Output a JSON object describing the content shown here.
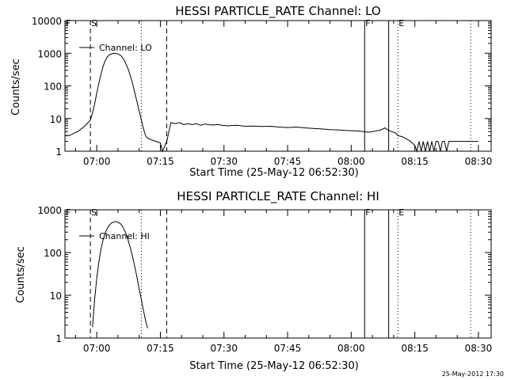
{
  "footer_stamp": "25-May-2012 17:30",
  "chart_data": [
    {
      "type": "line",
      "title": "HESSI PARTICLE_RATE Channel: LO",
      "xlabel": "Start Time (25-May-12 06:52:30)",
      "ylabel": "Counts/sec",
      "yscale": "log",
      "xlim": [
        "06:52:30",
        "08:33:00"
      ],
      "ylim": [
        1,
        10000
      ],
      "x_ticks": [
        "07:00",
        "07:15",
        "07:30",
        "07:45",
        "08:00",
        "08:15",
        "08:30"
      ],
      "y_ticks": [
        "1",
        "10",
        "100",
        "1000",
        "10000"
      ],
      "legend": {
        "entries": [
          "Channel: LO"
        ],
        "position": "top-left"
      },
      "markers": [
        {
          "label": "F",
          "time": "06:52:30",
          "style": "none"
        },
        {
          "label": "S",
          "time": "06:58:30",
          "style": "dashed"
        },
        {
          "label": "",
          "time": "07:10:30",
          "style": "dotted"
        },
        {
          "label": "",
          "time": "07:16:30",
          "style": "dashed"
        },
        {
          "label": "F",
          "time": "08:03:10",
          "style": "solid"
        },
        {
          "label": "",
          "time": "08:08:50",
          "style": "solid"
        },
        {
          "label": "E",
          "time": "08:11:00",
          "style": "dotted"
        },
        {
          "label": "",
          "time": "08:28:10",
          "style": "dotted"
        }
      ],
      "series": [
        {
          "name": "Channel: LO",
          "points": [
            [
              "06:52:30",
              3
            ],
            [
              "06:53:30",
              3
            ],
            [
              "06:54:30",
              3.5
            ],
            [
              "06:55:30",
              4
            ],
            [
              "06:56:30",
              5
            ],
            [
              "06:57:30",
              6.5
            ],
            [
              "06:58:30",
              9
            ],
            [
              "06:59:00",
              15
            ],
            [
              "06:59:30",
              28
            ],
            [
              "07:00:00",
              60
            ],
            [
              "07:00:30",
              120
            ],
            [
              "07:01:00",
              230
            ],
            [
              "07:01:30",
              400
            ],
            [
              "07:02:00",
              600
            ],
            [
              "07:02:30",
              780
            ],
            [
              "07:03:00",
              900
            ],
            [
              "07:03:30",
              960
            ],
            [
              "07:04:00",
              1000
            ],
            [
              "07:04:30",
              990
            ],
            [
              "07:05:00",
              950
            ],
            [
              "07:05:30",
              880
            ],
            [
              "07:06:00",
              760
            ],
            [
              "07:06:30",
              600
            ],
            [
              "07:07:00",
              440
            ],
            [
              "07:07:30",
              300
            ],
            [
              "07:08:00",
              190
            ],
            [
              "07:08:30",
              110
            ],
            [
              "07:09:00",
              60
            ],
            [
              "07:09:30",
              32
            ],
            [
              "07:10:00",
              17
            ],
            [
              "07:10:30",
              9
            ],
            [
              "07:11:00",
              5
            ],
            [
              "07:11:30",
              3
            ],
            [
              "07:12:00",
              2.5
            ],
            [
              "07:13:00",
              2.2
            ],
            [
              "07:14:00",
              2
            ],
            [
              "07:15:00",
              1.8
            ],
            [
              "07:15:30",
              1
            ],
            [
              "07:16:00",
              1.4
            ],
            [
              "07:16:30",
              2
            ],
            [
              "07:17:00",
              4
            ],
            [
              "07:17:30",
              7.5
            ],
            [
              "07:18:30",
              7
            ],
            [
              "07:19:30",
              7.5
            ],
            [
              "07:20:30",
              6.5
            ],
            [
              "07:21:30",
              7
            ],
            [
              "07:22:30",
              6.5
            ],
            [
              "07:23:30",
              7
            ],
            [
              "07:24:30",
              6.2
            ],
            [
              "07:25:30",
              6.8
            ],
            [
              "07:26:30",
              6.5
            ],
            [
              "07:27:30",
              6.3
            ],
            [
              "07:28:30",
              6.6
            ],
            [
              "07:29:30",
              6.2
            ],
            [
              "07:31:00",
              6
            ],
            [
              "07:33:00",
              6.2
            ],
            [
              "07:35:00",
              5.8
            ],
            [
              "07:37:00",
              5.9
            ],
            [
              "07:39:00",
              5.7
            ],
            [
              "07:41:00",
              5.8
            ],
            [
              "07:43:00",
              5.5
            ],
            [
              "07:45:00",
              5.3
            ],
            [
              "07:47:00",
              5.5
            ],
            [
              "07:49:00",
              5.2
            ],
            [
              "07:51:00",
              5
            ],
            [
              "07:53:00",
              4.8
            ],
            [
              "07:55:00",
              4.6
            ],
            [
              "07:57:00",
              4.5
            ],
            [
              "07:59:00",
              4.3
            ],
            [
              "08:01:00",
              4.2
            ],
            [
              "08:03:00",
              4
            ],
            [
              "08:04:00",
              3.8
            ],
            [
              "08:05:00",
              4
            ],
            [
              "08:06:00",
              4.2
            ],
            [
              "08:07:00",
              4.5
            ],
            [
              "08:08:00",
              5.2
            ],
            [
              "08:08:30",
              4.6
            ],
            [
              "08:09:30",
              4
            ],
            [
              "08:10:30",
              3.6
            ],
            [
              "08:11:00",
              3
            ],
            [
              "08:12:00",
              2.8
            ],
            [
              "08:13:00",
              2.4
            ],
            [
              "08:14:00",
              2
            ],
            [
              "08:15:00",
              1.5
            ],
            [
              "08:15:30",
              1
            ],
            [
              "08:16:00",
              2
            ],
            [
              "08:16:30",
              1
            ],
            [
              "08:17:00",
              2
            ],
            [
              "08:17:30",
              1
            ],
            [
              "08:18:00",
              2
            ],
            [
              "08:18:30",
              1
            ],
            [
              "08:19:00",
              2
            ],
            [
              "08:19:30",
              1
            ],
            [
              "08:20:00",
              2
            ],
            [
              "08:20:30",
              2
            ],
            [
              "08:21:00",
              1
            ],
            [
              "08:21:30",
              2
            ],
            [
              "08:22:00",
              2
            ],
            [
              "08:22:30",
              1
            ],
            [
              "08:23:00",
              2
            ],
            [
              "08:23:30",
              2
            ],
            [
              "08:24:00",
              2
            ],
            [
              "08:25:00",
              2
            ],
            [
              "08:26:00",
              2
            ],
            [
              "08:27:00",
              2
            ],
            [
              "08:28:00",
              2
            ],
            [
              "08:29:00",
              2
            ],
            [
              "08:30:00",
              2
            ]
          ]
        }
      ]
    },
    {
      "type": "line",
      "title": "HESSI PARTICLE_RATE Channel: HI",
      "xlabel": "Start Time (25-May-12 06:52:30)",
      "ylabel": "Counts/sec",
      "yscale": "log",
      "xlim": [
        "06:52:30",
        "08:33:00"
      ],
      "ylim": [
        1,
        1000
      ],
      "x_ticks": [
        "07:00",
        "07:15",
        "07:30",
        "07:45",
        "08:00",
        "08:15",
        "08:30"
      ],
      "y_ticks": [
        "1",
        "10",
        "100",
        "1000"
      ],
      "legend": {
        "entries": [
          "Channel: HI"
        ],
        "position": "top-left"
      },
      "markers": [
        {
          "label": "F",
          "time": "06:52:30",
          "style": "none"
        },
        {
          "label": "S",
          "time": "06:58:30",
          "style": "dashed"
        },
        {
          "label": "",
          "time": "07:10:30",
          "style": "dotted"
        },
        {
          "label": "",
          "time": "07:16:30",
          "style": "dashed"
        },
        {
          "label": "F",
          "time": "08:03:10",
          "style": "solid"
        },
        {
          "label": "",
          "time": "08:08:50",
          "style": "solid"
        },
        {
          "label": "E",
          "time": "08:11:00",
          "style": "dotted"
        },
        {
          "label": "",
          "time": "08:28:10",
          "style": "dotted"
        }
      ],
      "series": [
        {
          "name": "Channel: HI",
          "points": [
            [
              "06:59:00",
              1.8
            ],
            [
              "06:59:30",
              8
            ],
            [
              "07:00:00",
              25
            ],
            [
              "07:00:30",
              60
            ],
            [
              "07:01:00",
              120
            ],
            [
              "07:01:30",
              200
            ],
            [
              "07:02:00",
              290
            ],
            [
              "07:02:30",
              370
            ],
            [
              "07:03:00",
              440
            ],
            [
              "07:03:30",
              490
            ],
            [
              "07:04:00",
              520
            ],
            [
              "07:04:30",
              530
            ],
            [
              "07:05:00",
              510
            ],
            [
              "07:05:30",
              480
            ],
            [
              "07:06:00",
              420
            ],
            [
              "07:06:30",
              340
            ],
            [
              "07:07:00",
              260
            ],
            [
              "07:07:30",
              180
            ],
            [
              "07:08:00",
              120
            ],
            [
              "07:08:30",
              75
            ],
            [
              "07:09:00",
              45
            ],
            [
              "07:09:30",
              26
            ],
            [
              "07:10:00",
              14
            ],
            [
              "07:10:30",
              8
            ],
            [
              "07:11:00",
              4.5
            ],
            [
              "07:11:30",
              2.6
            ],
            [
              "07:12:00",
              1.7
            ]
          ]
        }
      ]
    }
  ]
}
